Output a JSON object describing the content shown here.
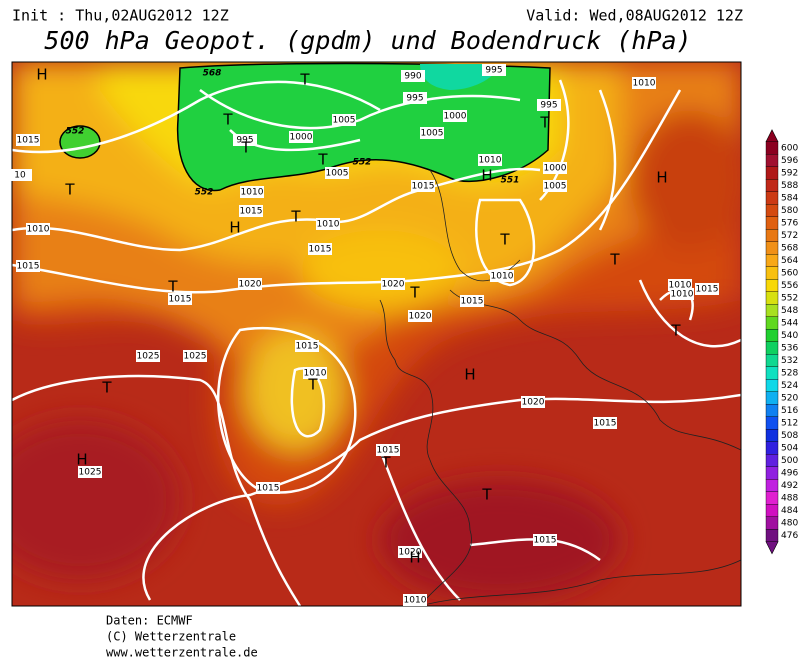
{
  "header": {
    "init": "Init : Thu,02AUG2012 12Z",
    "valid": "Valid: Wed,08AUG2012 12Z",
    "title": "500 hPa Geopot. (gpdm) und Bodendruck (hPa)"
  },
  "map": {
    "pressure_labels": [
      1015,
      10,
      1010,
      1015,
      1015,
      1020,
      1025,
      1025,
      1025,
      1015,
      1010,
      1015,
      1015,
      1020,
      1010,
      1015,
      1015,
      1020,
      1020,
      1020,
      1015,
      1010,
      1015,
      1010,
      1015,
      1010,
      1005,
      1015,
      1010,
      1005,
      1000,
      995,
      990,
      995,
      995,
      1000,
      1005,
      1010,
      1010,
      1010,
      1015,
      1000,
      1005,
      995
    ],
    "geopotential_labels": [
      568,
      552,
      552,
      551,
      552
    ],
    "centers": [
      "H",
      "T",
      "T",
      "T",
      "H",
      "T",
      "T",
      "T",
      "T",
      "T",
      "H",
      "T",
      "T",
      "H",
      "H",
      "T",
      "T",
      "H",
      "T",
      "T",
      "T",
      "H",
      "T"
    ]
  },
  "colorbar": {
    "ticks": [
      600,
      596,
      592,
      588,
      584,
      580,
      576,
      572,
      568,
      564,
      560,
      556,
      552,
      548,
      544,
      540,
      536,
      532,
      528,
      524,
      520,
      516,
      512,
      508,
      504,
      500,
      496,
      492,
      488,
      484,
      480,
      476
    ],
    "colors": [
      "#8b0020",
      "#a01030",
      "#b01818",
      "#c02818",
      "#cc3a14",
      "#d44a10",
      "#e06010",
      "#e87814",
      "#f09018",
      "#f8a818",
      "#f8c010",
      "#f8d808",
      "#d8e010",
      "#a8e020",
      "#60d820",
      "#20d030",
      "#10d060",
      "#10d890",
      "#10e0c0",
      "#10d8e8",
      "#10b0f0",
      "#1080f0",
      "#1050f0",
      "#1030e0",
      "#3020e0",
      "#6020e0",
      "#9020e0",
      "#c020e0",
      "#e020d0",
      "#d010c0",
      "#a010a0",
      "#701080"
    ]
  },
  "footer": {
    "source": "Daten: ECMWF",
    "copyright": "(C) Wetterzentrale",
    "url": "www.wetterzentrale.de"
  }
}
